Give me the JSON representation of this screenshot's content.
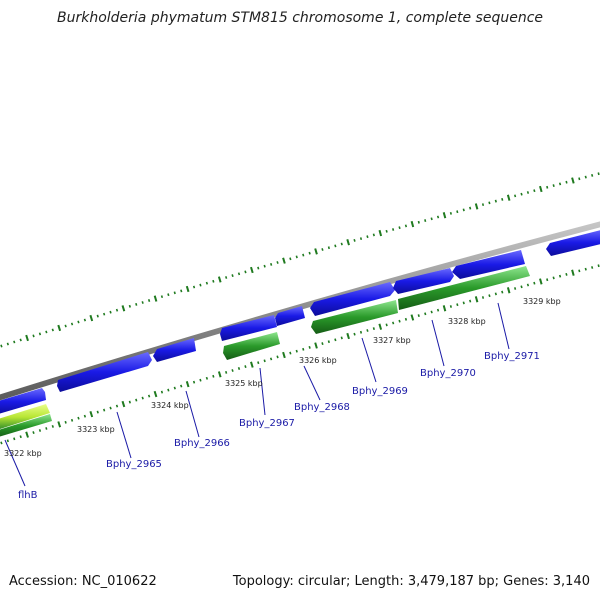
{
  "title": "Burkholderia phymatum STM815 chromosome 1, complete sequence",
  "footer": {
    "accession": "Accession: NC_010622",
    "summary": "Topology: circular; Length: 3,479,187 bp; Genes: 3,140"
  },
  "colors": {
    "backbone": "#8c8c8c",
    "forward_gene": "#1a1ae6",
    "reverse_gene": "#2a9a2a",
    "reverse_gene_highlight": "#b8e634",
    "tick": "#1f7a1f",
    "gene_label": "#1a1aa6",
    "scale_label": "#222222"
  },
  "scale_labels": [
    "3322 kbp",
    "3323 kbp",
    "3324 kbp",
    "3325 kbp",
    "3326 kbp",
    "3327 kbp",
    "3328 kbp",
    "3329 kbp"
  ],
  "gene_labels": [
    "flhB",
    "Bphy_2965",
    "Bphy_2966",
    "Bphy_2967",
    "Bphy_2968",
    "Bphy_2969",
    "Bphy_2970",
    "Bphy_2971"
  ]
}
